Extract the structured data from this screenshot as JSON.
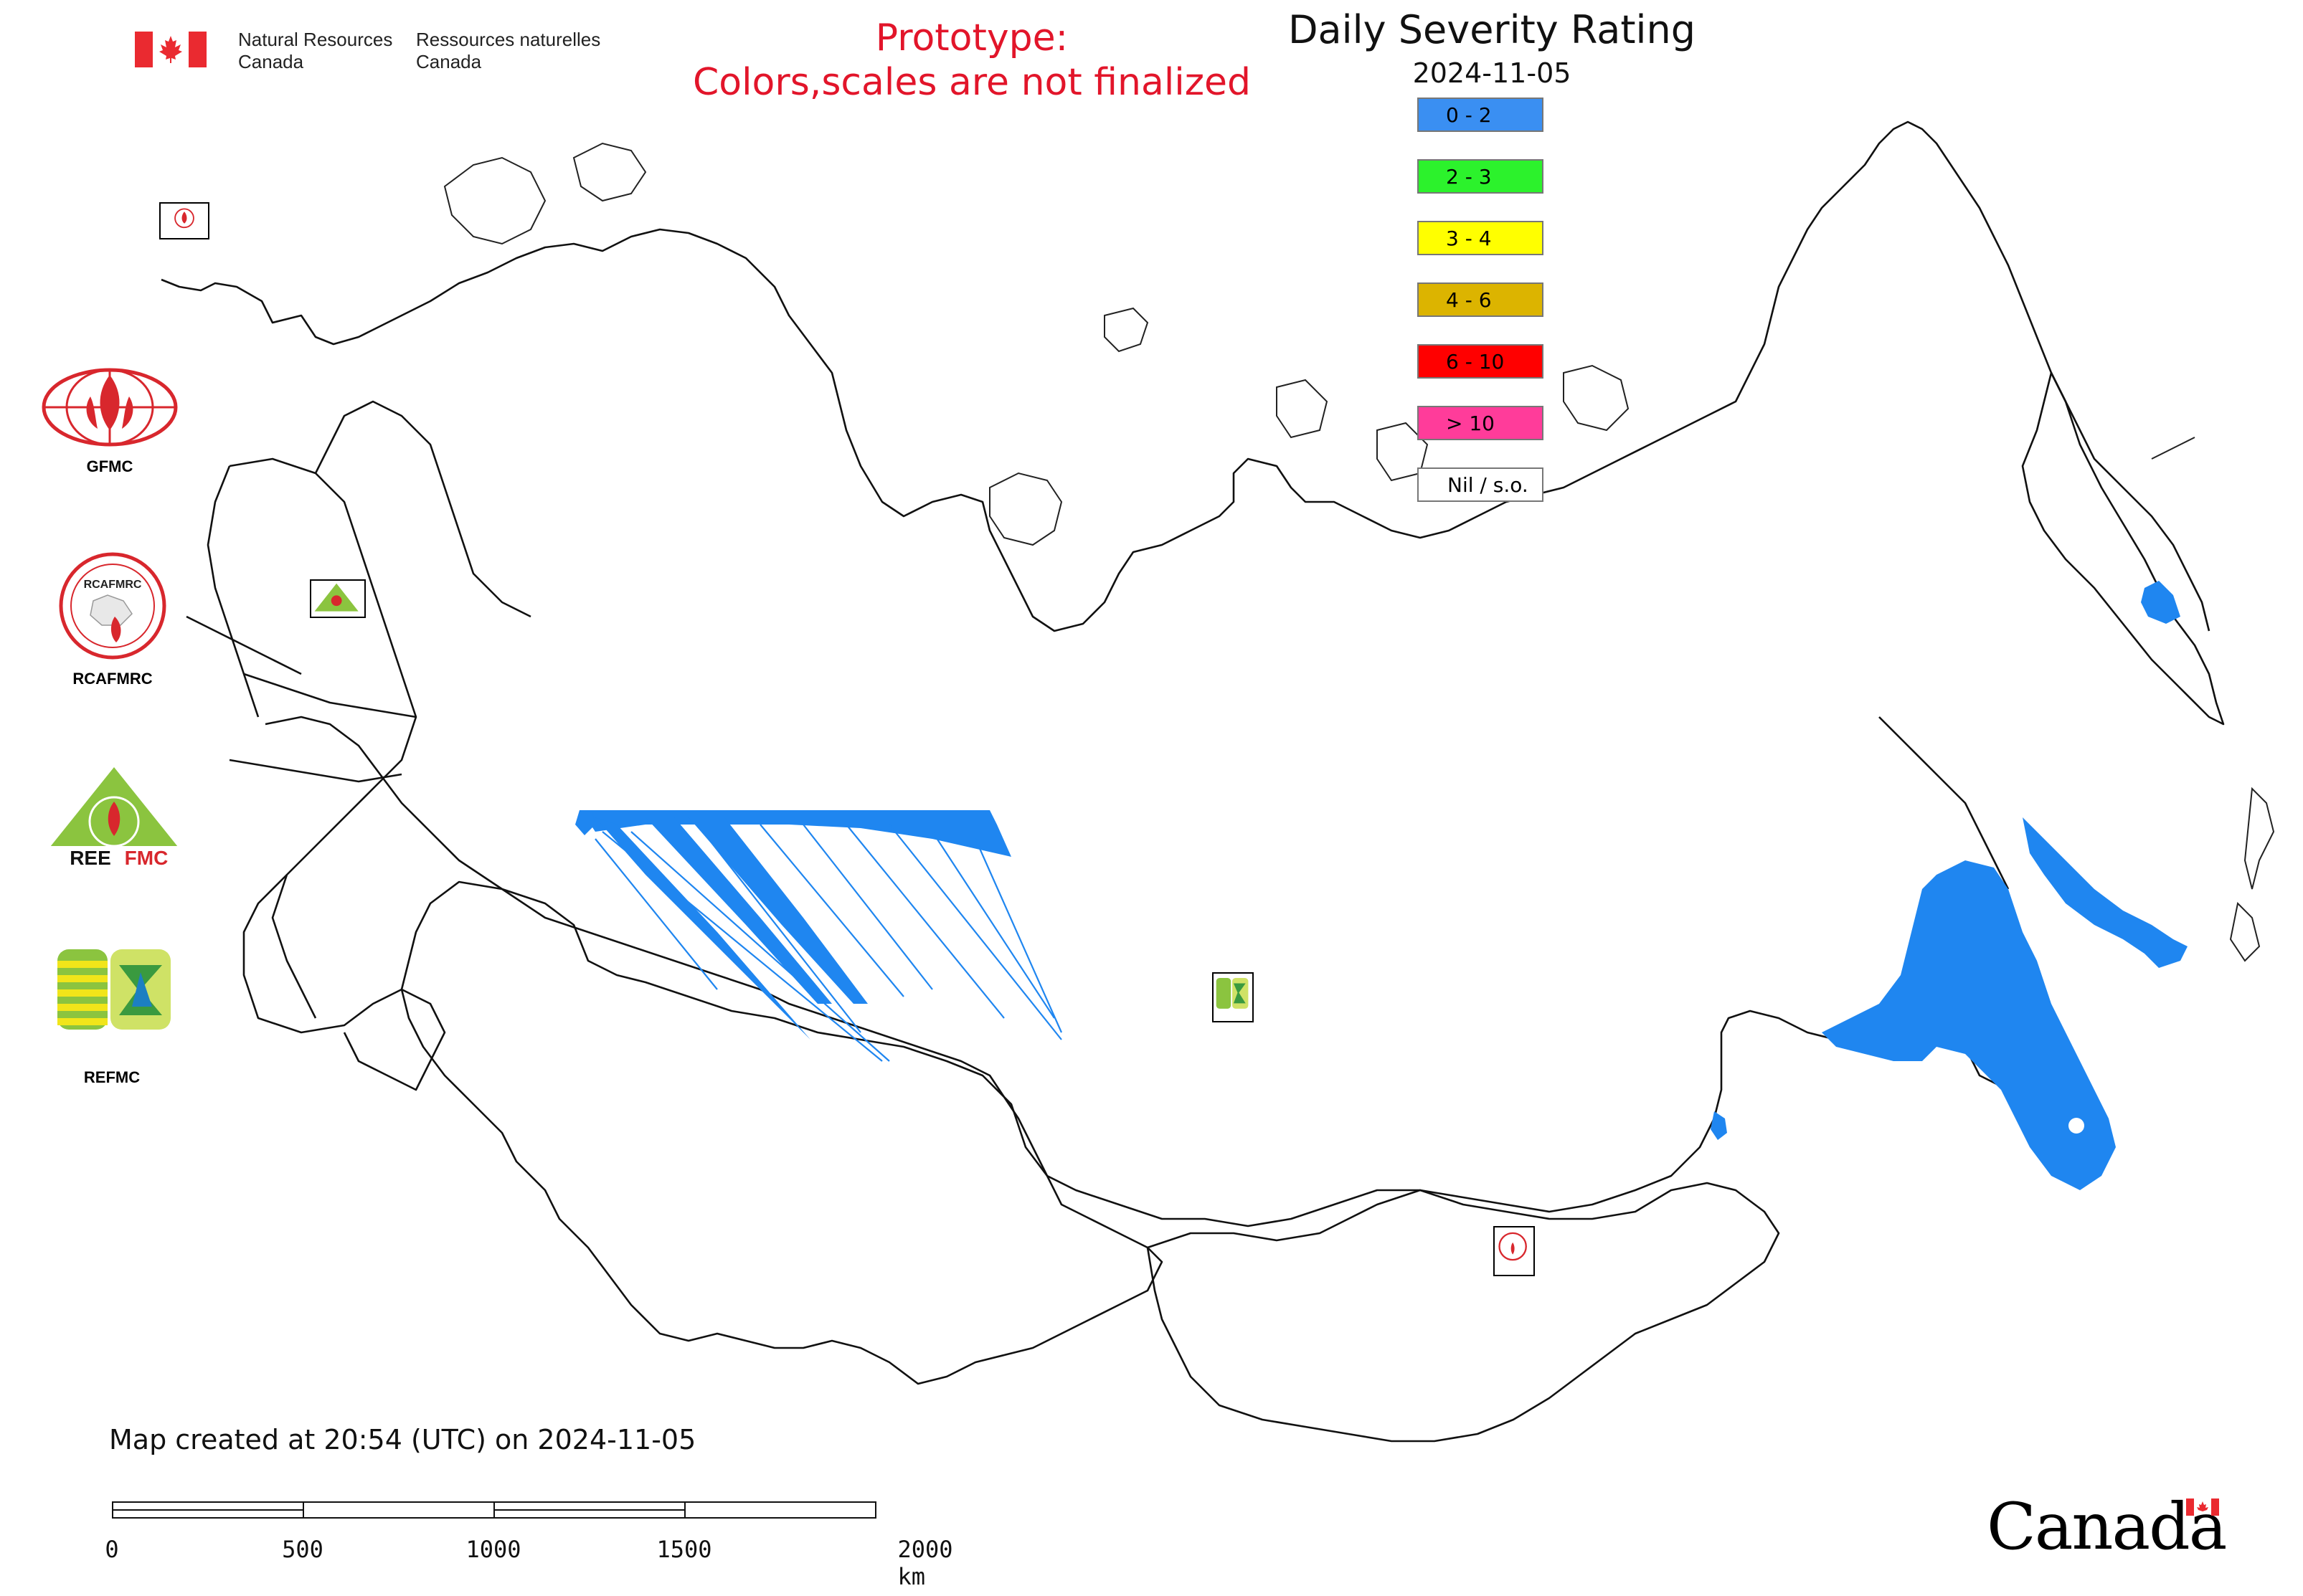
{
  "header": {
    "department_en_line1": "Natural Resources",
    "department_en_line2": "Canada",
    "department_fr_line1": "Ressources naturelles",
    "department_fr_line2": "Canada",
    "flag_icon": "canada-flag-icon"
  },
  "notice": {
    "line1": "Prototype:",
    "line2": "Colors,scales are not finalized",
    "color": "#e2152a"
  },
  "map": {
    "title": "Daily Severity Rating",
    "date": "2024-11-05"
  },
  "legend": [
    {
      "label": "0 - 2",
      "color": "#3a8ff2"
    },
    {
      "label": "2 - 3",
      "color": "#2cf22c"
    },
    {
      "label": "3 - 4",
      "color": "#ffff00"
    },
    {
      "label": "4 - 6",
      "color": "#dcb400"
    },
    {
      "label": "6 - 10",
      "color": "#ff0000"
    },
    {
      "label": "> 10",
      "color": "#ff3c9a"
    },
    {
      "label": "Nil / s.o.",
      "color": "#ffffff"
    }
  ],
  "logos": [
    {
      "name": "GFMC",
      "icon": "gfmc-logo-icon"
    },
    {
      "name": "RCAFMRC",
      "icon": "rcafmrc-logo-icon"
    },
    {
      "name": "REEFMC",
      "icon": "reefmc-logo-icon"
    },
    {
      "name": "REFMC",
      "icon": "refmc-logo-icon"
    }
  ],
  "footer": {
    "created": "Map created at 20:54 (UTC) on 2024-11-05",
    "scale_labels": [
      "0",
      "500",
      "1000",
      "1500",
      "2000 km"
    ],
    "wordmark": "Canada"
  }
}
